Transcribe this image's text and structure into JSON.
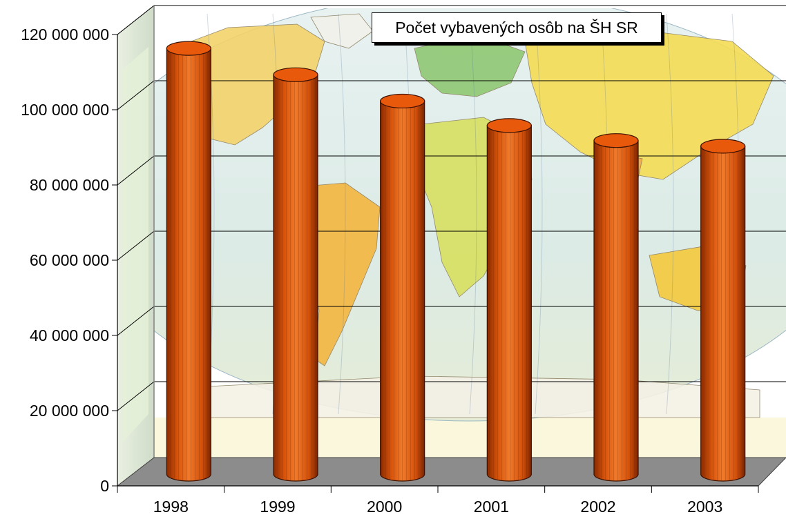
{
  "chart_data": {
    "type": "bar",
    "title": "Počet vybavených  osôb na ŠH SR",
    "categories": [
      "1998",
      "1999",
      "2000",
      "2001",
      "2002",
      "2003"
    ],
    "series": [
      {
        "values": [
          113000000,
          106000000,
          99000000,
          92500000,
          88500000,
          87000000
        ]
      }
    ],
    "ylim": [
      0,
      120000000
    ],
    "yticks": [
      "0",
      "20 000 000",
      "40 000 000",
      "60 000 000",
      "80 000 000",
      "100 000 000",
      "120 000 000"
    ],
    "xlabel": "",
    "ylabel": "",
    "grid": true,
    "bar_shape": "cylinder",
    "bar_color": "#E8590C",
    "background": "world-map",
    "floor_color": "#8C8C8C"
  }
}
